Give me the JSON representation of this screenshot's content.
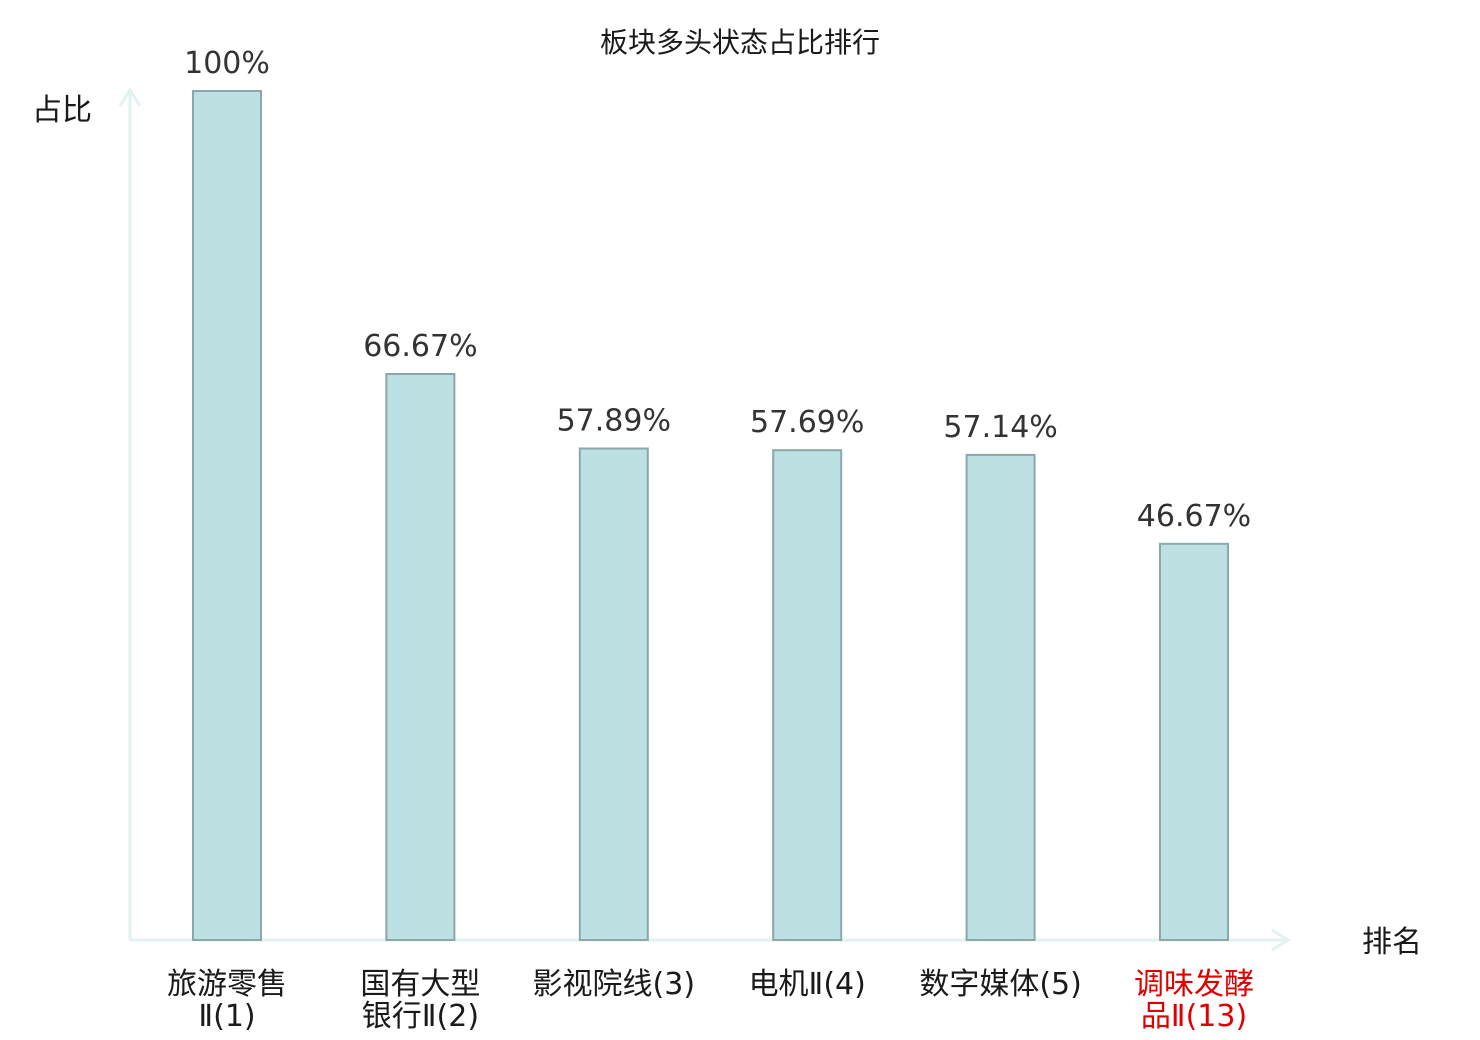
{
  "chart_data": {
    "type": "bar",
    "title": "板块多头状态占比排行",
    "ylabel": "占比",
    "xlabel": "排名",
    "ylim": [
      0,
      100
    ],
    "grid": false,
    "categories": [
      {
        "lines": [
          "旅游零售",
          "Ⅱ(1)"
        ],
        "highlight": false
      },
      {
        "lines": [
          "国有大型",
          "银行Ⅱ(2)"
        ],
        "highlight": false
      },
      {
        "lines": [
          "影视院线(3)"
        ],
        "highlight": false
      },
      {
        "lines": [
          "电机Ⅱ(4)"
        ],
        "highlight": false
      },
      {
        "lines": [
          "数字媒体(5)"
        ],
        "highlight": false
      },
      {
        "lines": [
          "调味发酵",
          "品Ⅱ(13)"
        ],
        "highlight": true
      }
    ],
    "values": [
      100,
      66.67,
      57.89,
      57.69,
      57.14,
      46.67
    ],
    "value_labels": [
      "100%",
      "66.67%",
      "57.89%",
      "57.69%",
      "57.14%",
      "46.67%"
    ],
    "colors": {
      "bar_fill": "#bde0e3",
      "bar_stroke": "#8aa8aa",
      "axis": "#e0f3f0",
      "highlight_text": "#e00000"
    }
  }
}
